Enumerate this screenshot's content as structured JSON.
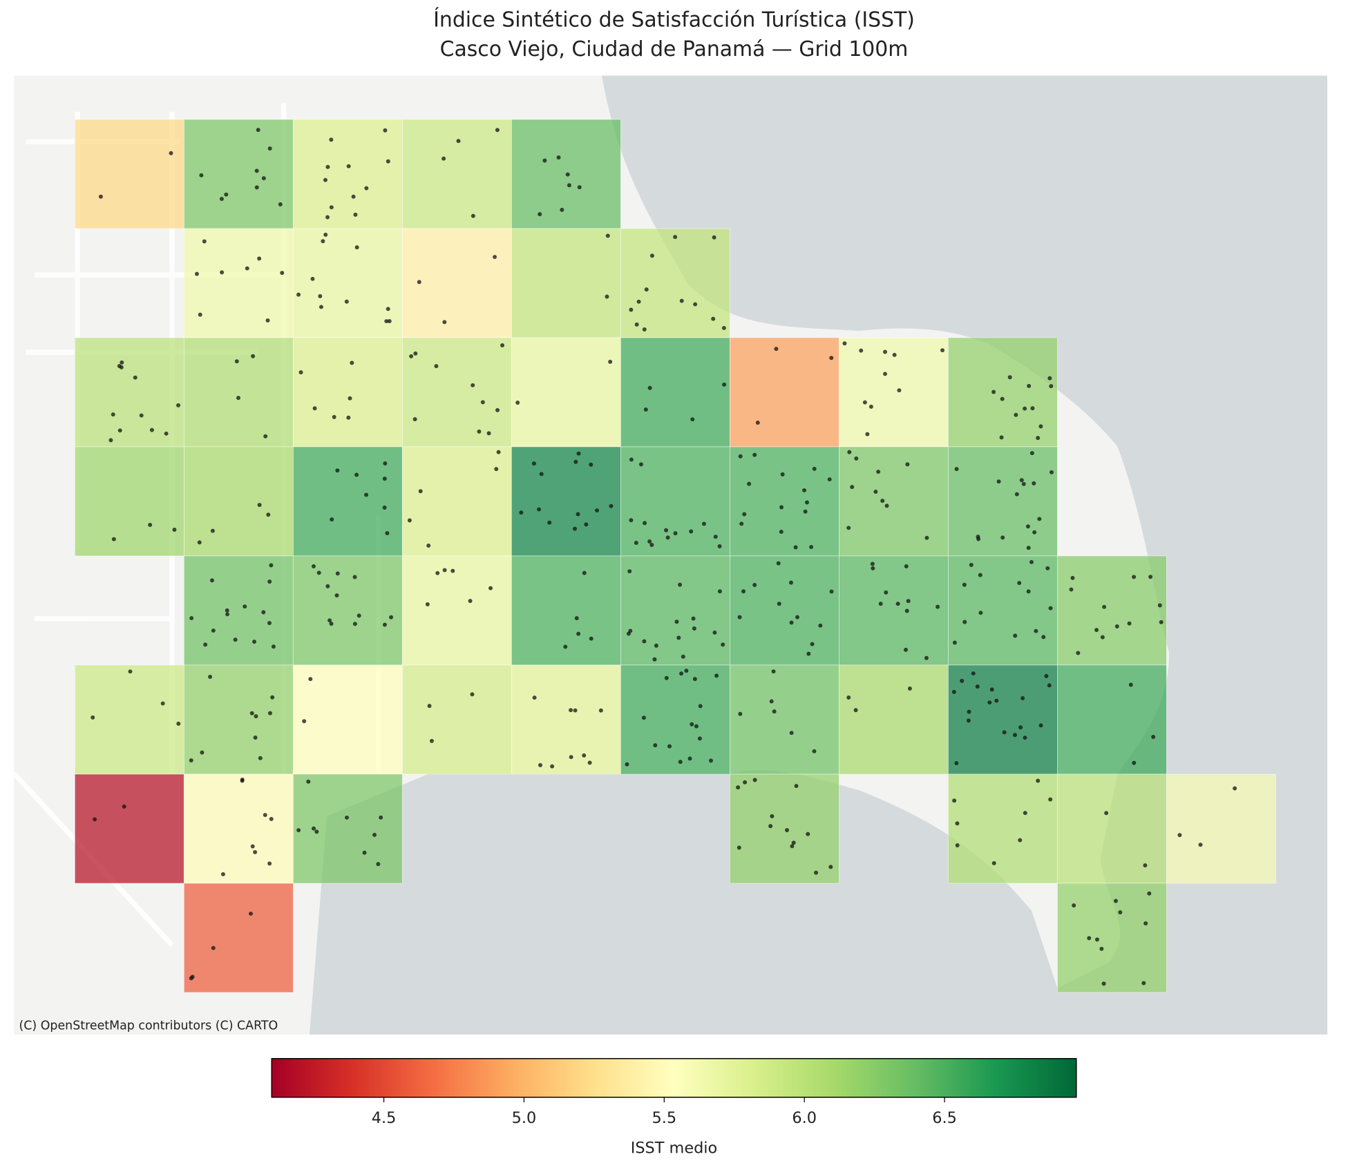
{
  "chart_data": {
    "type": "grid-map",
    "title": "Índice Sintético de Satisfacción Turística (ISST)",
    "subtitle": "Casco Viejo, Ciudad de Panamá — Grid 100m",
    "attribution": "(C) OpenStreetMap contributors (C) CARTO",
    "colorbar_label": "ISST medio",
    "colormap": "RdYlGn",
    "clim": [
      4.1,
      6.97
    ],
    "cticks": [
      4.5,
      5.0,
      5.5,
      6.0,
      6.5
    ],
    "values": [
      [
        5.2,
        6.3,
        5.8,
        5.9,
        6.4,
        null,
        null,
        null,
        null,
        null,
        null
      ],
      [
        null,
        5.65,
        5.7,
        5.4,
        5.95,
        5.95,
        null,
        null,
        null,
        null,
        null
      ],
      [
        6.0,
        6.05,
        5.8,
        5.9,
        5.7,
        6.55,
        4.9,
        5.65,
        6.2,
        null,
        null
      ],
      [
        6.15,
        6.1,
        6.55,
        5.8,
        6.8,
        6.5,
        6.5,
        6.3,
        6.4,
        null,
        null
      ],
      [
        null,
        6.35,
        6.3,
        5.7,
        6.5,
        6.45,
        6.5,
        6.45,
        6.45,
        6.25,
        null
      ],
      [
        5.9,
        6.2,
        5.55,
        5.85,
        5.75,
        6.55,
        6.35,
        6.1,
        6.85,
        6.55,
        null
      ],
      [
        4.2,
        5.5,
        6.3,
        null,
        null,
        null,
        6.2,
        null,
        6.05,
        6.0,
        5.6
      ],
      [
        null,
        4.6,
        null,
        null,
        null,
        null,
        null,
        null,
        null,
        6.2,
        null
      ]
    ]
  }
}
